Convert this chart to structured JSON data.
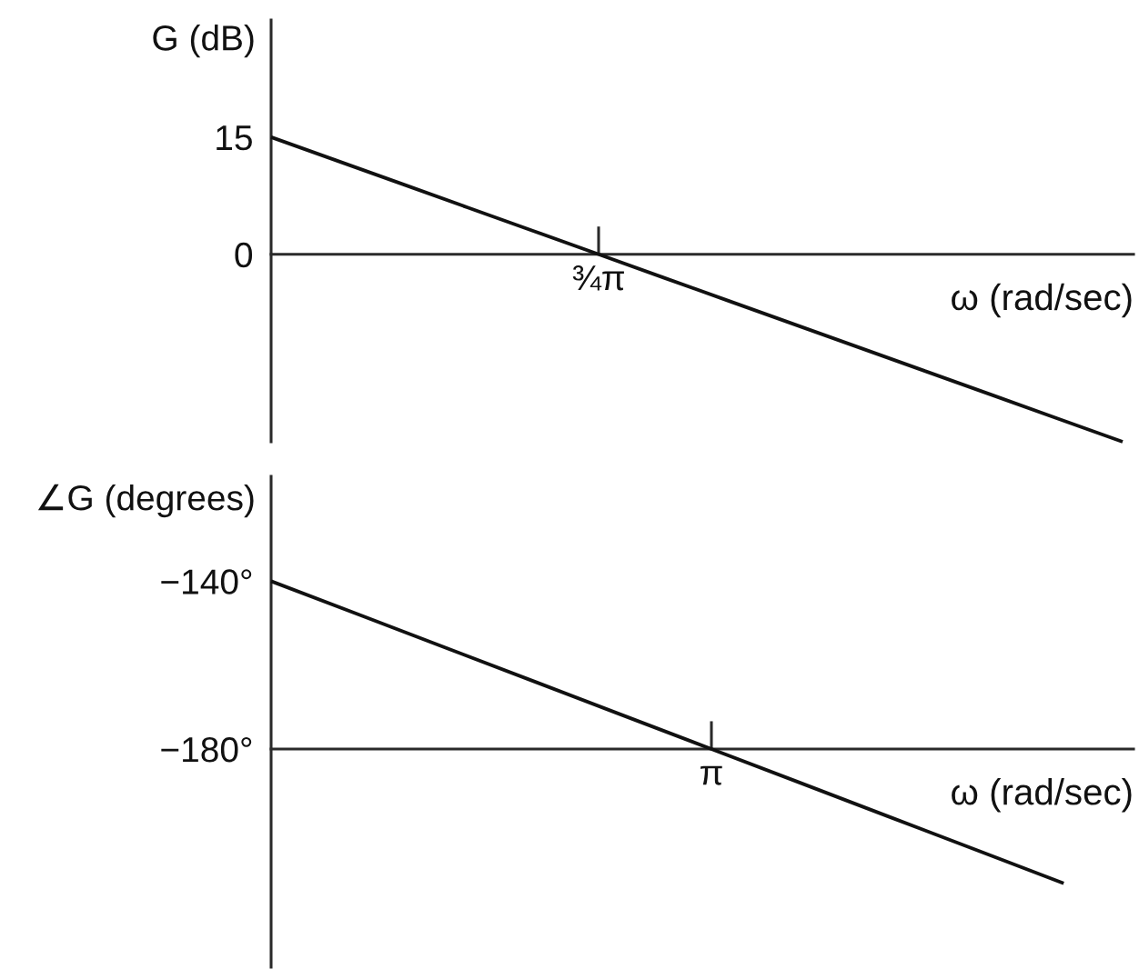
{
  "chart_data": [
    {
      "type": "line",
      "ylabel": "G (dB)",
      "xlabel": "ω (rad/sec)",
      "categories": [
        null,
        null,
        null,
        null,
        null,
        "¾π",
        null,
        null,
        null,
        null,
        null,
        null,
        null,
        null
      ],
      "series": [
        {
          "color": "#111111",
          "values": [
            15,
            12,
            9,
            6,
            3,
            0,
            -3,
            -6,
            -9,
            -12,
            -15,
            -18,
            -21,
            -24
          ]
        }
      ],
      "ylim": [
        -24,
        30
      ],
      "yticks": [
        {
          "value": 0,
          "label": "0"
        },
        {
          "value": 15,
          "label": "15"
        }
      ],
      "ref_lines": [
        {
          "axis": "y",
          "value": 0
        }
      ]
    },
    {
      "type": "line",
      "ylabel": "∠G (degrees)",
      "xlabel": "ω (rad/sec)",
      "categories": [
        null,
        null,
        null,
        null,
        null,
        "π",
        null,
        null,
        null,
        null
      ],
      "series": [
        {
          "color": "#111111",
          "values": [
            -140,
            -148,
            -156,
            -164,
            -172,
            -180,
            -188,
            -196,
            -204,
            -212
          ]
        }
      ],
      "ylim": [
        -232,
        -115
      ],
      "yticks": [
        {
          "value": -180,
          "label": "−180°"
        },
        {
          "value": -140,
          "label": "−140°"
        }
      ],
      "ref_lines": [
        {
          "axis": "y",
          "value": -180
        }
      ]
    }
  ]
}
